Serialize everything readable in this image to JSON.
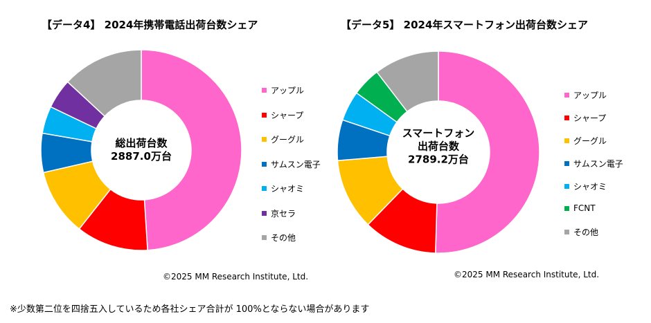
{
  "chart_data": [
    {
      "type": "pie",
      "title": "【データ4】 2024年携帯電話出荷台数シェア",
      "center_label": [
        "総出荷台数",
        "2887.0万台"
      ],
      "categories": [
        "アップル",
        "シャープ",
        "グーグル",
        "サムスン電子",
        "シャオミ",
        "京セラ",
        "その他"
      ],
      "values": [
        49.0,
        11.6,
        10.8,
        6.3,
        4.4,
        4.8,
        13.1
      ],
      "colors": [
        "#FF66CC",
        "#FF0000",
        "#FFC000",
        "#0070C0",
        "#00B0F0",
        "#7030A0",
        "#A5A5A5"
      ],
      "legend": "right",
      "copyright": "©2025 MM Research Institute, Ltd."
    },
    {
      "type": "pie",
      "title": "【データ5】 2024年スマートフォン出荷台数シェア",
      "center_label": [
        "スマートフォン",
        "出荷台数",
        "2789.2万台"
      ],
      "categories": [
        "アップル",
        "シャープ",
        "グーグル",
        "サムスン電子",
        "シャオミ",
        "FCNT",
        "その他"
      ],
      "values": [
        50.4,
        11.8,
        11.4,
        6.5,
        4.8,
        4.6,
        10.4
      ],
      "colors": [
        "#FF66CC",
        "#FF0000",
        "#FFC000",
        "#0070C0",
        "#00B0F0",
        "#00B050",
        "#A5A5A5"
      ],
      "legend": "right",
      "copyright": "©2025 MM Research Institute, Ltd."
    }
  ],
  "footnote": "※少数第二位を四捨五入しているため各社シェア合計が 100%とならない場合があります"
}
